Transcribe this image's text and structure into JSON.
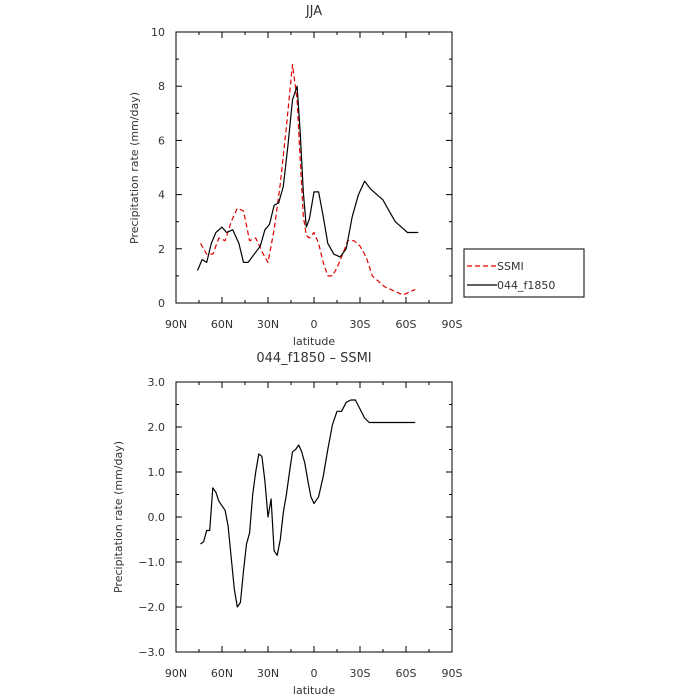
{
  "chart_data": [
    {
      "type": "line",
      "title": "JJA",
      "xlabel": "latitude",
      "ylabel": "Precipitation rate  (mm/day)",
      "xlim": [
        -90,
        90
      ],
      "ylim": [
        0,
        10
      ],
      "x_ticks": [
        {
          "value": -90,
          "label": "90N"
        },
        {
          "value": -60,
          "label": "60N"
        },
        {
          "value": -30,
          "label": "30N"
        },
        {
          "value": 0,
          "label": "0"
        },
        {
          "value": 30,
          "label": "30S"
        },
        {
          "value": 60,
          "label": "60S"
        },
        {
          "value": 90,
          "label": "90S"
        }
      ],
      "y_ticks": [
        {
          "value": 0,
          "label": "0"
        },
        {
          "value": 2,
          "label": "2"
        },
        {
          "value": 4,
          "label": "4"
        },
        {
          "value": 6,
          "label": "6"
        },
        {
          "value": 8,
          "label": "8"
        },
        {
          "value": 10,
          "label": "10"
        }
      ],
      "legend_position": "right",
      "series": [
        {
          "name": "SSMI",
          "color": "#e00000",
          "dash": true,
          "x": [
            -74,
            -70,
            -66,
            -62,
            -58,
            -54,
            -50,
            -46,
            -42,
            -38,
            -34,
            -30,
            -26,
            -22,
            -18,
            -14,
            -11,
            -9,
            -7,
            -5,
            -3,
            0,
            3,
            6,
            9,
            12,
            15,
            18,
            22,
            26,
            30,
            34,
            38,
            42,
            46,
            50,
            54,
            58,
            62,
            66
          ],
          "y": [
            2.2,
            1.8,
            1.8,
            2.4,
            2.3,
            3.0,
            3.5,
            3.4,
            2.3,
            2.4,
            1.9,
            1.5,
            2.7,
            4.4,
            6.5,
            8.8,
            7.5,
            5.3,
            3.2,
            2.5,
            2.4,
            2.6,
            2.2,
            1.5,
            1.0,
            1.0,
            1.3,
            1.7,
            2.3,
            2.3,
            2.1,
            1.7,
            1.0,
            0.8,
            0.6,
            0.5,
            0.4,
            0.3,
            0.4,
            0.5
          ]
        },
        {
          "name": "044_f1850",
          "color": "#000000",
          "dash": false,
          "x": [
            -76,
            -73,
            -70,
            -67,
            -64,
            -60,
            -57,
            -53,
            -49,
            -46,
            -43,
            -39,
            -35,
            -32,
            -29,
            -26,
            -23,
            -20,
            -17,
            -14,
            -11,
            -9,
            -7,
            -5,
            -3,
            0,
            3,
            6,
            9,
            13,
            17,
            21,
            25,
            29,
            33,
            37,
            41,
            45,
            49,
            53,
            57,
            61,
            64,
            68
          ],
          "y": [
            1.2,
            1.6,
            1.5,
            2.2,
            2.6,
            2.8,
            2.6,
            2.7,
            2.2,
            1.5,
            1.5,
            1.8,
            2.1,
            2.7,
            2.9,
            3.6,
            3.7,
            4.3,
            5.8,
            7.5,
            8.0,
            6.3,
            4.1,
            2.8,
            3.1,
            4.1,
            4.1,
            3.2,
            2.2,
            1.8,
            1.7,
            2.0,
            3.2,
            4.0,
            4.5,
            4.2,
            4.0,
            3.8,
            3.4,
            3.0,
            2.8,
            2.6,
            2.6,
            2.6
          ]
        }
      ]
    },
    {
      "type": "line",
      "title": "044_f1850 – SSMI",
      "xlabel": "latitude",
      "ylabel": "Precipitation rate  (mm/day)",
      "xlim": [
        -90,
        90
      ],
      "ylim": [
        -3,
        3
      ],
      "x_ticks": [
        {
          "value": -90,
          "label": "90N"
        },
        {
          "value": -60,
          "label": "60N"
        },
        {
          "value": -30,
          "label": "30N"
        },
        {
          "value": 0,
          "label": "0"
        },
        {
          "value": 30,
          "label": "30S"
        },
        {
          "value": 60,
          "label": "60S"
        },
        {
          "value": 90,
          "label": "90S"
        }
      ],
      "y_ticks": [
        {
          "value": -3,
          "label": "−3.0"
        },
        {
          "value": -2,
          "label": "−2.0"
        },
        {
          "value": -1,
          "label": "−1.0"
        },
        {
          "value": 0,
          "label": "0.0"
        },
        {
          "value": 1,
          "label": "1.0"
        },
        {
          "value": 2,
          "label": "2.0"
        },
        {
          "value": 3,
          "label": "3.0"
        }
      ],
      "series": [
        {
          "color": "#000000",
          "dash": false,
          "x": [
            -74,
            -72,
            -70,
            -68,
            -66,
            -64,
            -62,
            -60,
            -58,
            -56,
            -54,
            -52,
            -50,
            -48,
            -46,
            -44,
            -42,
            -40,
            -38,
            -36,
            -34,
            -32,
            -30,
            -28,
            -26,
            -24,
            -22,
            -20,
            -18,
            -16,
            -14,
            -12,
            -10,
            -8,
            -6,
            -4,
            -2,
            0,
            3,
            6,
            9,
            12,
            15,
            18,
            21,
            24,
            27,
            30,
            33,
            36,
            39,
            42,
            45,
            48,
            51,
            54,
            57,
            60,
            63,
            66
          ],
          "y": [
            -0.6,
            -0.55,
            -0.3,
            -0.3,
            0.65,
            0.55,
            0.35,
            0.25,
            0.15,
            -0.2,
            -0.9,
            -1.6,
            -2.0,
            -1.9,
            -1.2,
            -0.6,
            -0.35,
            0.5,
            1.0,
            1.4,
            1.35,
            0.8,
            0.0,
            0.4,
            -0.75,
            -0.85,
            -0.5,
            0.1,
            0.5,
            1.0,
            1.45,
            1.5,
            1.6,
            1.45,
            1.2,
            0.8,
            0.45,
            0.3,
            0.45,
            0.9,
            1.5,
            2.05,
            2.35,
            2.35,
            2.55,
            2.6,
            2.6,
            2.4,
            2.2,
            2.1,
            2.1,
            2.1,
            2.1,
            2.1,
            2.1,
            2.1,
            2.1,
            2.1,
            2.1,
            2.1
          ]
        }
      ]
    }
  ]
}
